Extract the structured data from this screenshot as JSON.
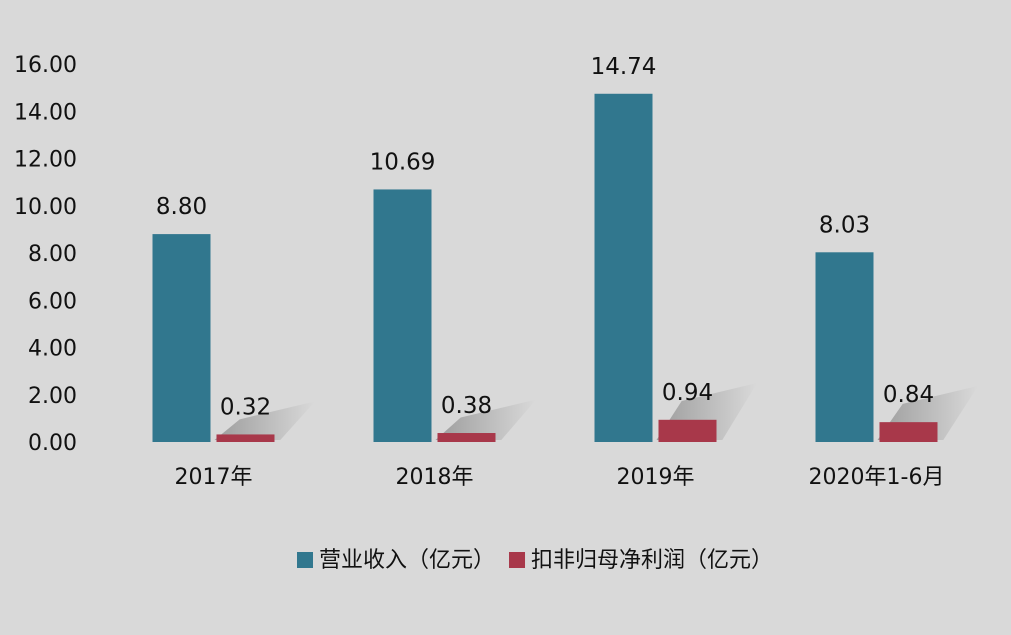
{
  "chart_data": {
    "type": "bar",
    "categories": [
      "2017年",
      "2018年",
      "2019年",
      "2020年1-6月"
    ],
    "series": [
      {
        "name": "营业收入（亿元）",
        "values": [
          8.8,
          10.69,
          14.74,
          8.03
        ],
        "color": "#31778e"
      },
      {
        "name": "扣非归母净利润（亿元）",
        "values": [
          0.32,
          0.38,
          0.94,
          0.84
        ],
        "color": "#a8384a"
      }
    ],
    "yticks": [
      "0.00",
      "2.00",
      "4.00",
      "6.00",
      "8.00",
      "10.00",
      "12.00",
      "14.00",
      "16.00"
    ],
    "ylim": [
      0,
      16
    ],
    "grid": false,
    "legend": "bottom",
    "value_format_decimals": 2
  },
  "colors": {
    "background": "#d9d9d9",
    "text": "#111111"
  }
}
